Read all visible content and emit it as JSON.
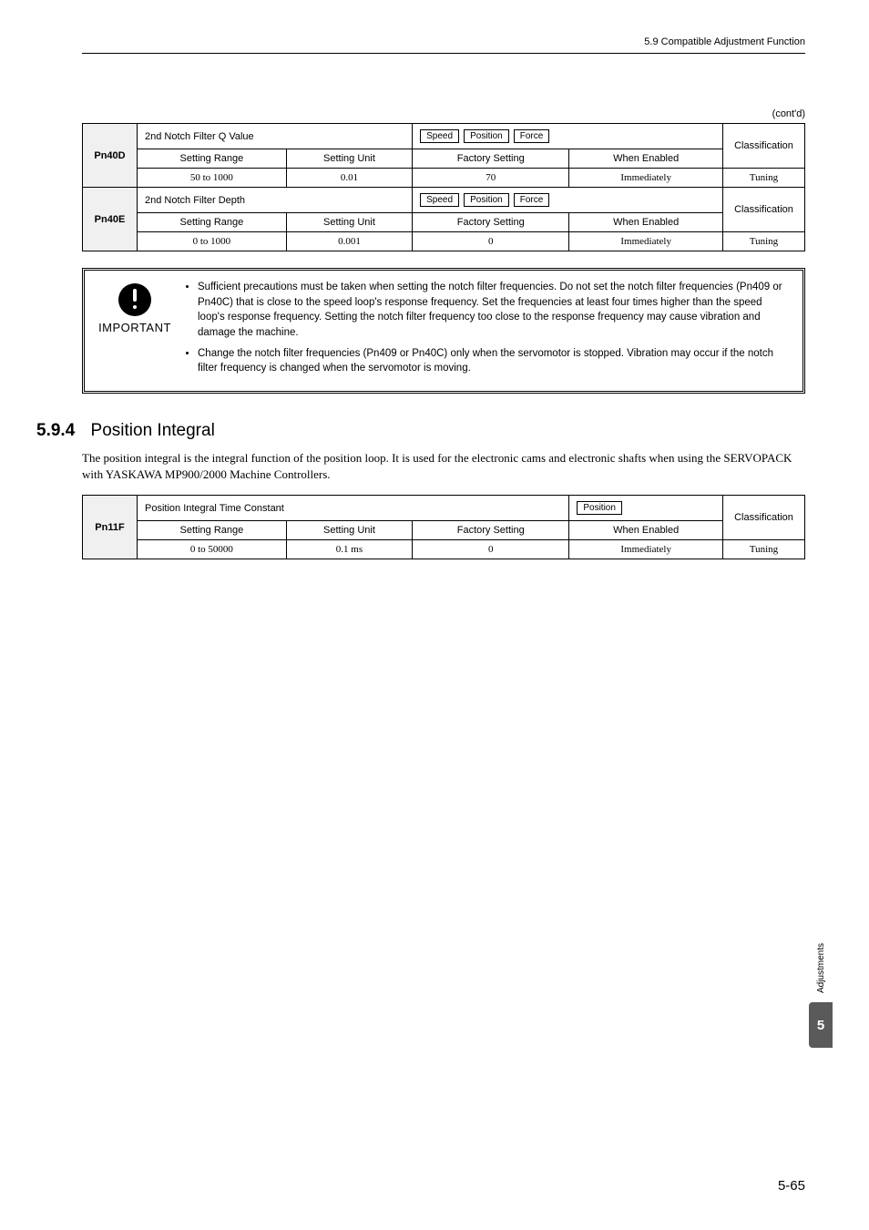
{
  "header": {
    "section_ref": "5.9  Compatible Adjustment Function"
  },
  "contd": "(cont'd)",
  "tables": {
    "t1": {
      "rowA": {
        "code": "Pn40D",
        "title": "2nd Notch Filter Q Value",
        "badges": [
          "Speed",
          "Position",
          "Force"
        ],
        "class_label": "Classification",
        "h1": "Setting Range",
        "h2": "Setting Unit",
        "h3": "Factory Setting",
        "h4": "When Enabled",
        "v1": "50 to 1000",
        "v2": "0.01",
        "v3": "70",
        "v4": "Immediately",
        "v5": "Tuning"
      },
      "rowB": {
        "code": "Pn40E",
        "title": "2nd Notch Filter Depth",
        "badges": [
          "Speed",
          "Position",
          "Force"
        ],
        "class_label": "Classification",
        "h1": "Setting Range",
        "h2": "Setting Unit",
        "h3": "Factory Setting",
        "h4": "When Enabled",
        "v1": "0 to 1000",
        "v2": "0.001",
        "v3": "0",
        "v4": "Immediately",
        "v5": "Tuning"
      }
    },
    "t2": {
      "code": "Pn11F",
      "title": "Position Integral Time Constant",
      "badges": [
        "Position"
      ],
      "class_label": "Classification",
      "h1": "Setting Range",
      "h2": "Setting Unit",
      "h3": "Factory Setting",
      "h4": "When Enabled",
      "v1": "0 to 50000",
      "v2": "0.1 ms",
      "v3": "0",
      "v4": "Immediately",
      "v5": "Tuning"
    }
  },
  "important": {
    "label": "IMPORTANT",
    "bullet1": "Sufficient precautions must be taken when setting the notch filter frequencies. Do not set the notch filter frequencies (Pn409 or Pn40C) that is close to the speed loop's response frequency. Set the frequencies at least four times higher than the speed loop's response frequency. Setting the notch filter frequency too close to the response frequency may cause vibration and damage the machine.",
    "bullet2": "Change the notch filter frequencies (Pn409 or Pn40C) only when the servomotor is stopped. Vibration may occur if the notch filter frequency is changed when the servomotor is moving."
  },
  "section": {
    "num": "5.9.4",
    "title": "Position Integral",
    "body": "The position integral is the integral function of the position loop. It is used for the electronic cams and electronic shafts when using the SERVOPACK with YASKAWA MP900/2000 Machine Controllers."
  },
  "side": {
    "label": "Adjustments",
    "chapter": "5"
  },
  "page_number": "5-65"
}
